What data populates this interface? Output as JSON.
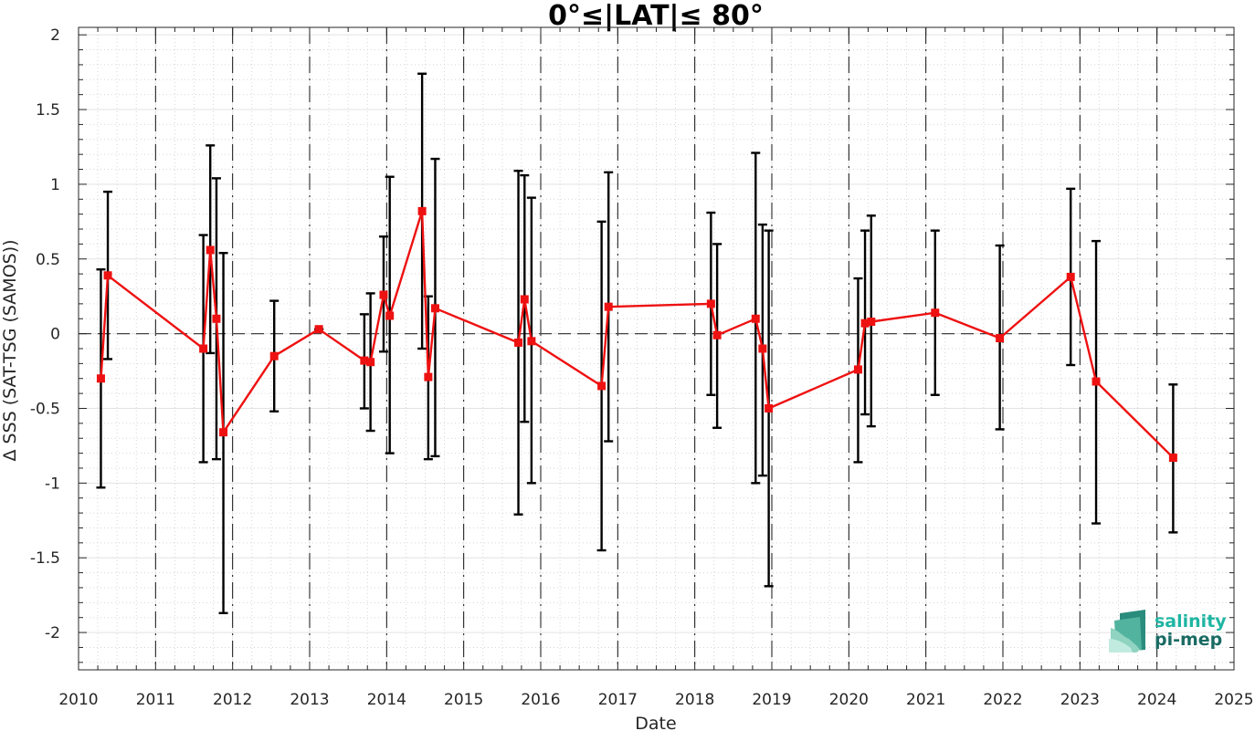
{
  "chart_data": {
    "type": "line",
    "title": "0°≤|LAT|≤ 80°",
    "xlabel": "Date",
    "ylabel": "Δ SSS (SAT-TSG (SAMOS))",
    "xlim": [
      2010,
      2025
    ],
    "ylim": [
      -2.25,
      2.05
    ],
    "x_ticks": [
      2010,
      2011,
      2012,
      2013,
      2014,
      2015,
      2016,
      2017,
      2018,
      2019,
      2020,
      2021,
      2022,
      2023,
      2024,
      2025
    ],
    "x_tick_labels": [
      "2010",
      "2011",
      "2012",
      "2013",
      "2014",
      "2015",
      "2016",
      "2017",
      "2018",
      "2019",
      "2020",
      "2021",
      "2022",
      "2023",
      "2024",
      "2025"
    ],
    "y_ticks": [
      2,
      1.5,
      1,
      0.5,
      0,
      -0.5,
      -1,
      -1.5,
      -2
    ],
    "y_tick_labels": [
      "2",
      "1.5",
      "1",
      "0.5",
      "0",
      "-0.5",
      "-1",
      "-1.5",
      "-2"
    ],
    "grid": true,
    "reference_line_y": 0,
    "year_boundaries": [
      2011,
      2012,
      2013,
      2014,
      2015,
      2016,
      2017,
      2018,
      2019,
      2020,
      2021,
      2022,
      2023,
      2024
    ],
    "series": [
      {
        "name": "",
        "color": "#ee1111",
        "errorbar_color": "#000000",
        "marker": "square",
        "points": [
          {
            "x": 2010.29,
            "y": -0.3,
            "lo": -1.03,
            "hi": 0.43
          },
          {
            "x": 2010.38,
            "y": 0.39,
            "lo": -0.17,
            "hi": 0.95
          },
          {
            "x": 2011.62,
            "y": -0.1,
            "lo": -0.86,
            "hi": 0.66
          },
          {
            "x": 2011.71,
            "y": 0.56,
            "lo": -0.13,
            "hi": 1.26
          },
          {
            "x": 2011.79,
            "y": 0.1,
            "lo": -0.84,
            "hi": 1.04
          },
          {
            "x": 2011.88,
            "y": -0.66,
            "lo": -1.87,
            "hi": 0.54
          },
          {
            "x": 2012.54,
            "y": -0.15,
            "lo": -0.52,
            "hi": 0.22
          },
          {
            "x": 2013.12,
            "y": 0.03,
            "lo": 0.03,
            "hi": 0.03
          },
          {
            "x": 2013.71,
            "y": -0.18,
            "lo": -0.5,
            "hi": 0.13
          },
          {
            "x": 2013.79,
            "y": -0.19,
            "lo": -0.65,
            "hi": 0.27
          },
          {
            "x": 2013.96,
            "y": 0.26,
            "lo": -0.12,
            "hi": 0.65
          },
          {
            "x": 2014.04,
            "y": 0.12,
            "lo": -0.8,
            "hi": 1.05
          },
          {
            "x": 2014.46,
            "y": 0.82,
            "lo": -0.1,
            "hi": 1.74
          },
          {
            "x": 2014.54,
            "y": -0.29,
            "lo": -0.84,
            "hi": 0.25
          },
          {
            "x": 2014.63,
            "y": 0.17,
            "lo": -0.82,
            "hi": 1.17
          },
          {
            "x": 2015.71,
            "y": -0.06,
            "lo": -1.21,
            "hi": 1.09
          },
          {
            "x": 2015.79,
            "y": 0.23,
            "lo": -0.59,
            "hi": 1.06
          },
          {
            "x": 2015.88,
            "y": -0.05,
            "lo": -1.0,
            "hi": 0.91
          },
          {
            "x": 2016.79,
            "y": -0.35,
            "lo": -1.45,
            "hi": 0.75
          },
          {
            "x": 2016.88,
            "y": 0.18,
            "lo": -0.72,
            "hi": 1.08
          },
          {
            "x": 2018.21,
            "y": 0.2,
            "lo": -0.41,
            "hi": 0.81
          },
          {
            "x": 2018.29,
            "y": -0.01,
            "lo": -0.63,
            "hi": 0.6
          },
          {
            "x": 2018.79,
            "y": 0.1,
            "lo": -1.0,
            "hi": 1.21
          },
          {
            "x": 2018.88,
            "y": -0.1,
            "lo": -0.95,
            "hi": 0.73
          },
          {
            "x": 2018.96,
            "y": -0.5,
            "lo": -1.69,
            "hi": 0.69
          },
          {
            "x": 2020.12,
            "y": -0.24,
            "lo": -0.86,
            "hi": 0.37
          },
          {
            "x": 2020.21,
            "y": 0.07,
            "lo": -0.54,
            "hi": 0.69
          },
          {
            "x": 2020.29,
            "y": 0.08,
            "lo": -0.62,
            "hi": 0.79
          },
          {
            "x": 2021.12,
            "y": 0.14,
            "lo": -0.41,
            "hi": 0.69
          },
          {
            "x": 2021.96,
            "y": -0.03,
            "lo": -0.64,
            "hi": 0.59
          },
          {
            "x": 2022.88,
            "y": 0.38,
            "lo": -0.21,
            "hi": 0.97
          },
          {
            "x": 2023.21,
            "y": -0.32,
            "lo": -1.27,
            "hi": 0.62
          },
          {
            "x": 2024.21,
            "y": -0.83,
            "lo": -1.33,
            "hi": -0.34
          }
        ]
      }
    ]
  },
  "logo": {
    "line1": "salinity",
    "line2": "pi-mep",
    "color1": "#1fb5a3",
    "color2": "#1a6b63"
  }
}
